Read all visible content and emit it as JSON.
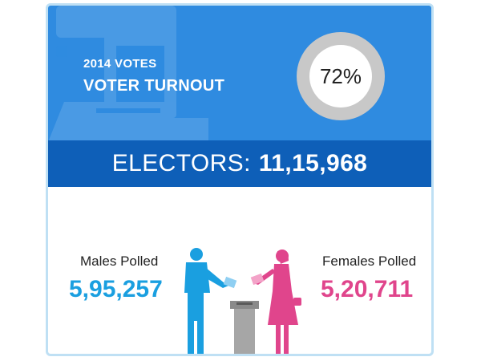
{
  "header": {
    "year_label": "2014 VOTES",
    "title": "VOTER TURNOUT",
    "turnout_percent": "72%"
  },
  "electors": {
    "label": "ELECTORS:",
    "value": "11,15,968"
  },
  "males": {
    "label": "Males Polled",
    "value": "5,95,257"
  },
  "females": {
    "label": "Females Polled",
    "value": "5,20,711"
  },
  "colors": {
    "header_blue": "#2f8be0",
    "bar_blue": "#0e5fb8",
    "male_blue": "#1a9fe0",
    "female_pink": "#e0458c",
    "ring_gray": "#c8c8c8",
    "frame": "#bfe0f4"
  },
  "icons": [
    "ballot-box-icon",
    "male-voter-icon",
    "female-voter-icon",
    "voting-booth-icon"
  ]
}
